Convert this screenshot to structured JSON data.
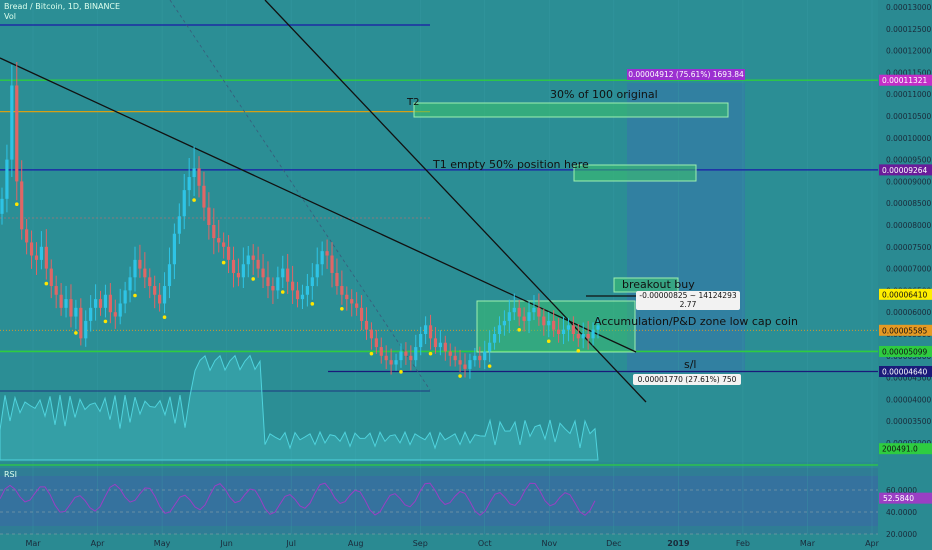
{
  "header": {
    "symbol_title": "Bread / Bitcoin, 1D, BINANCE",
    "vol_label": "Vol"
  },
  "colors": {
    "bg": "#2a8a92",
    "panel": "#2f7d95",
    "up": "#2ec4e6",
    "down": "#e06666",
    "green_line": "#2ecc40",
    "blue_line": "#1a1aa8",
    "orange_line": "#d4a017",
    "zone": "#3cc26b",
    "volume": "#4fd3dd",
    "rsi": "#9a3fc4",
    "marker": "#ffe600"
  },
  "price_axis": {
    "ticks": [
      "0.00013000",
      "0.00012500",
      "0.00012000",
      "0.00011500",
      "0.00011000",
      "0.00010500",
      "0.00010000",
      "0.00009500",
      "0.00009000",
      "0.00008500",
      "0.00008000",
      "0.00007500",
      "0.00007000",
      "0.00006500",
      "0.00006000",
      "0.00005500",
      "0.00005000",
      "0.00004500",
      "0.00004000",
      "0.00003500",
      "0.00003000"
    ],
    "badges": [
      {
        "label": "0.00011321",
        "value": 0.00011321,
        "color": "#c32ec8"
      },
      {
        "label": "0.00009264",
        "value": 9.264e-05,
        "color": "#6a1b9a"
      },
      {
        "label": "0.00006410",
        "value": 6.41e-05,
        "color": "#ffee00"
      },
      {
        "label": "0.00005585",
        "value": 5.585e-05,
        "color": "#e69a22"
      },
      {
        "label": "0.00005099",
        "value": 5.099e-05,
        "color": "#2ecc40"
      },
      {
        "label": "0.00004640",
        "value": 4.64e-05,
        "color": "#1a1a7a"
      },
      {
        "label": "200491.0",
        "value": 2.87e-05,
        "color": "#2ecc40"
      }
    ]
  },
  "rsi_panel": {
    "label": "RSI",
    "ticks": [
      "60.0000",
      "40.0000",
      "20.0000"
    ],
    "value_badge": "52.5840"
  },
  "time_axis": {
    "labels": [
      "Mar",
      "Apr",
      "May",
      "Jun",
      "Jul",
      "Aug",
      "Sep",
      "Oct",
      "Nov",
      "Dec",
      "2019",
      "Feb",
      "Mar",
      "Apr"
    ]
  },
  "annotations": {
    "t2": "T2",
    "target_30": "30% of 100 original",
    "t1": "T1 empty 50% position here",
    "breakout": "breakout buy",
    "accumulation": "Accumulation/P&D zone low cap coin",
    "sl": "s/l",
    "measure_top": "0.00004912 (75.61%) 1693.84",
    "measure_mid_1": "-0.00000825 ~ 14124293",
    "measure_mid_2": "2.77",
    "measure_bot": "0.00001770 (27.61%) 750"
  },
  "chart_data": {
    "type": "candlestick",
    "title": "Bread / Bitcoin, 1D, BINANCE",
    "x_unit": "approx. daily bars, Feb 2018 – Nov 2018",
    "ylim": [
      2e-05,
      0.00013
    ],
    "key_levels": [
      0.00011321,
      0.000106,
      9.264e-05,
      6.41e-05,
      5.585e-05,
      5.099e-05,
      4.64e-05
    ],
    "close_series": [
      8.6e-05,
      9.5e-05,
      0.000112,
      9e-05,
      7.9e-05,
      7.6e-05,
      7.3e-05,
      7.2e-05,
      7.5e-05,
      7e-05,
      6.6e-05,
      6.4e-05,
      6.1e-05,
      6.3e-05,
      5.9e-05,
      6.1e-05,
      5.4e-05,
      5.8e-05,
      6.1e-05,
      6.3e-05,
      6.1e-05,
      6.4e-05,
      6e-05,
      5.9e-05,
      6.2e-05,
      6.5e-05,
      6.8e-05,
      7.2e-05,
      7e-05,
      6.8e-05,
      6.6e-05,
      6.4e-05,
      6.2e-05,
      6.6e-05,
      7.1e-05,
      7.8e-05,
      8.2e-05,
      8.8e-05,
      9.1e-05,
      9.3e-05,
      8.9e-05,
      8.4e-05,
      8e-05,
      7.7e-05,
      7.6e-05,
      7.5e-05,
      7.2e-05,
      6.9e-05,
      6.8e-05,
      7.1e-05,
      7.3e-05,
      7.2e-05,
      7e-05,
      6.8e-05,
      6.6e-05,
      6.5e-05,
      6.8e-05,
      7e-05,
      6.7e-05,
      6.5e-05,
      6.3e-05,
      6.4e-05,
      6.6e-05,
      6.8e-05,
      7.1e-05,
      7.4e-05,
      7.3e-05,
      6.9e-05,
      6.6e-05,
      6.4e-05,
      6.3e-05,
      6.2e-05,
      6.1e-05,
      5.8e-05,
      5.6e-05,
      5.4e-05,
      5.2e-05,
      5e-05,
      4.9e-05,
      4.8e-05,
      4.9e-05,
      5.1e-05,
      5e-05,
      4.9e-05,
      5.2e-05,
      5.5e-05,
      5.7e-05,
      5.4e-05,
      5.2e-05,
      5.3e-05,
      5.1e-05,
      5e-05,
      4.9e-05,
      4.8e-05,
      4.7e-05,
      4.9e-05,
      5e-05,
      4.9e-05,
      5.1e-05,
      5.3e-05,
      5.5e-05,
      5.7e-05,
      5.8e-05,
      6e-05,
      6.1e-05,
      5.9e-05,
      5.8e-05,
      6e-05,
      6.1e-05,
      5.9e-05,
      5.7e-05,
      5.8e-05,
      5.6e-05,
      5.5e-05,
      5.6e-05,
      5.7e-05,
      5.5e-05,
      5.4e-05,
      5.5e-05,
      5.4e-05,
      5.6e-05,
      5.7e-05
    ]
  }
}
